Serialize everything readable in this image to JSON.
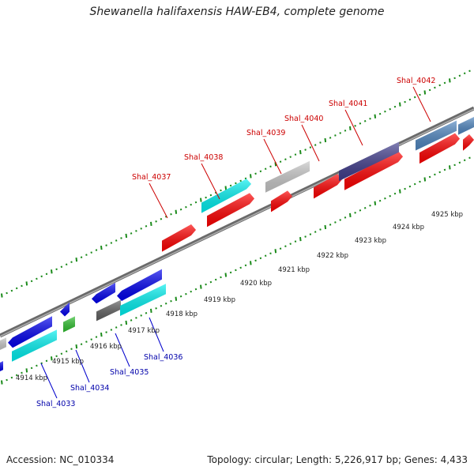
{
  "title": "Shewanella halifaxensis HAW-EB4, complete genome",
  "accession_label": "Accession: NC_010334",
  "meta_label": "Topology: circular; Length: 5,226,917 bp; Genes: 4,433",
  "ticks": [
    "4914 kbp",
    "4915 kbp",
    "4916 kbp",
    "4917 kbp",
    "4918 kbp",
    "4919 kbp",
    "4920 kbp",
    "4921 kbp",
    "4922 kbp",
    "4923 kbp",
    "4924 kbp",
    "4925 kbp"
  ],
  "top_genes": [
    "Shal_4037",
    "Shal_4038",
    "Shal_4039",
    "Shal_4040",
    "Shal_4041",
    "Shal_4042"
  ],
  "bottom_genes": [
    "Shal_4033",
    "Shal_4034",
    "Shal_4035",
    "Shal_4036"
  ],
  "colors": {
    "red": "#ff0000",
    "blue": "#0000ee",
    "cyan": "#00f0f0",
    "gray": "#c8c8c8",
    "darkgray": "#606060",
    "green": "#30c030",
    "purple": "#403c8c",
    "steel": "#4f86c0",
    "tick": "#1a8a1a",
    "top_label": "#cc0000",
    "bottom_label": "#0000aa"
  }
}
